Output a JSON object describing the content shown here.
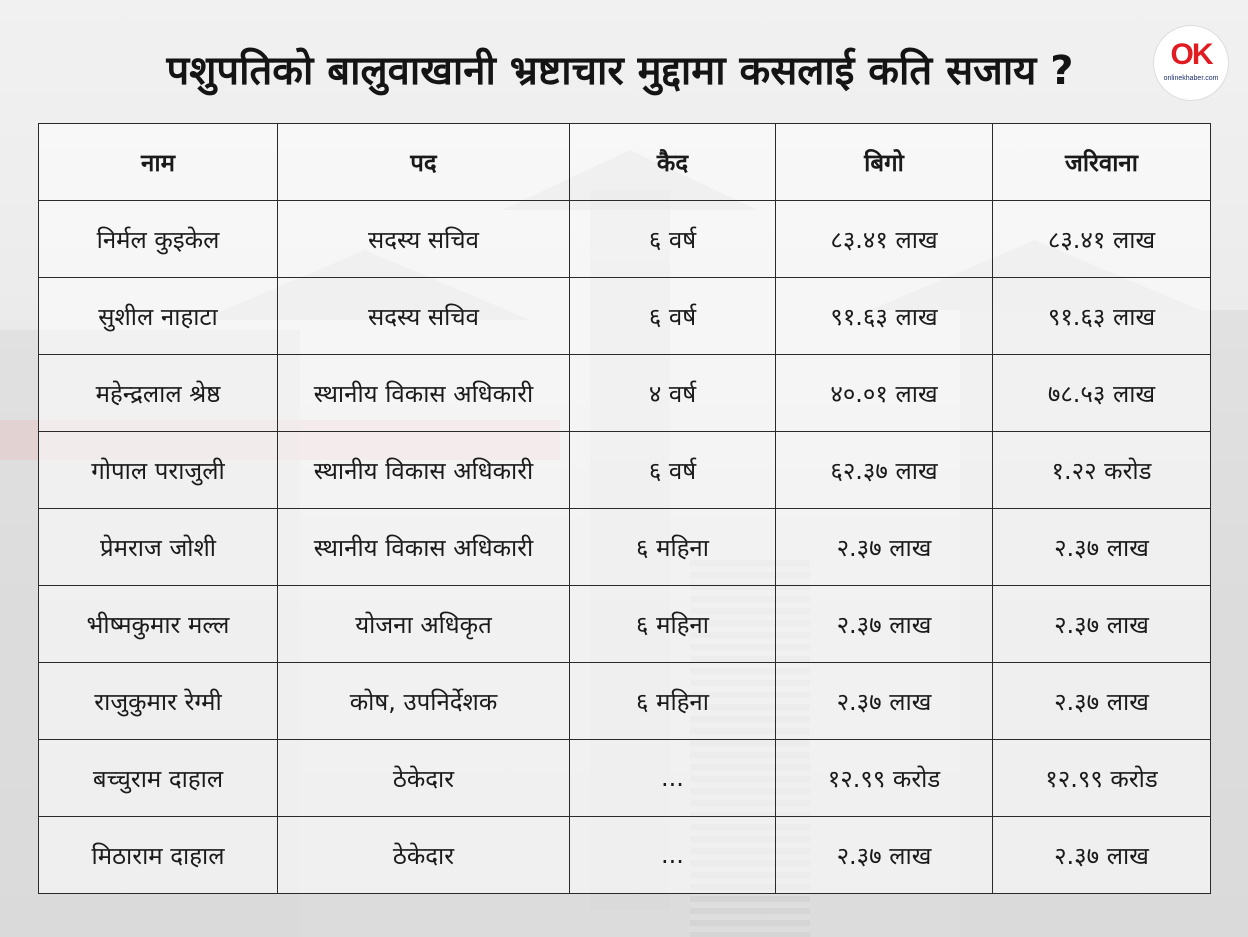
{
  "title": "पशुपतिको बालुवाखानी भ्रष्टाचार मुद्दामा कसलाई कति सजाय ?",
  "logo": {
    "mark": "OK",
    "text": "onlinekhaber.com"
  },
  "table": {
    "headers": [
      "नाम",
      "पद",
      "कैद",
      "बिगो",
      "जरिवाना"
    ],
    "rows": [
      [
        "निर्मल कुइकेल",
        "सदस्य सचिव",
        "६ वर्ष",
        "८३.४१ लाख",
        "८३.४१ लाख"
      ],
      [
        "सुशील नाहाटा",
        "सदस्य सचिव",
        "६ वर्ष",
        "९१.६३ लाख",
        "९१.६३ लाख"
      ],
      [
        "महेन्द्रलाल श्रेष्ठ",
        "स्थानीय विकास अधिकारी",
        "४ वर्ष",
        "४०.०१ लाख",
        "७८.५३ लाख"
      ],
      [
        "गोपाल पराजुली",
        "स्थानीय विकास अधिकारी",
        "६ वर्ष",
        "६२.३७ लाख",
        "१.२२ करोड"
      ],
      [
        "प्रेमराज जोशी",
        "स्थानीय विकास अधिकारी",
        "६ महिना",
        "२.३७ लाख",
        "२.३७ लाख"
      ],
      [
        "भीष्मकुमार मल्ल",
        "योजना अधिकृत",
        "६ महिना",
        "२.३७ लाख",
        "२.३७ लाख"
      ],
      [
        "राजुकुमार रेग्मी",
        "कोष, उपनिर्देशक",
        "६ महिना",
        "२.३७ लाख",
        "२.३७ लाख"
      ],
      [
        "बच्चुराम दाहाल",
        "ठेकेदार",
        "...",
        "१२.९९ करोड",
        "१२.९९ करोड"
      ],
      [
        "मिठाराम दाहाल",
        "ठेकेदार",
        "...",
        "२.३७ लाख",
        "२.३७ लाख"
      ]
    ]
  }
}
